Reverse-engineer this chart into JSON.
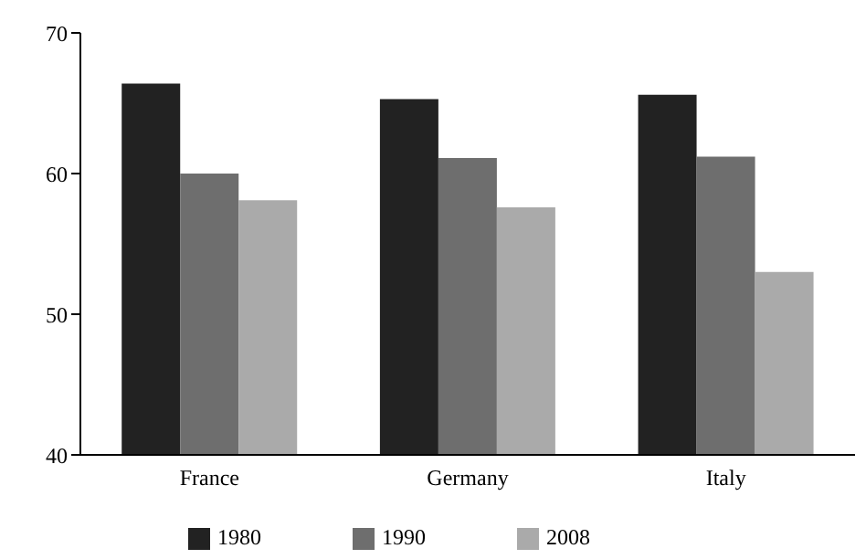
{
  "chart_data": {
    "type": "bar",
    "categories": [
      "France",
      "Germany",
      "Italy"
    ],
    "series": [
      {
        "name": "1980",
        "color": "#222222",
        "values": [
          66.4,
          65.3,
          65.6
        ]
      },
      {
        "name": "1990",
        "color": "#6e6e6e",
        "values": [
          60.0,
          61.1,
          61.2
        ]
      },
      {
        "name": "2008",
        "color": "#aaaaaa",
        "values": [
          58.1,
          57.6,
          53.0
        ]
      }
    ],
    "ylim": [
      40,
      70
    ],
    "yticks": [
      40,
      50,
      60,
      70
    ],
    "grid": false,
    "legend": "bottom"
  }
}
